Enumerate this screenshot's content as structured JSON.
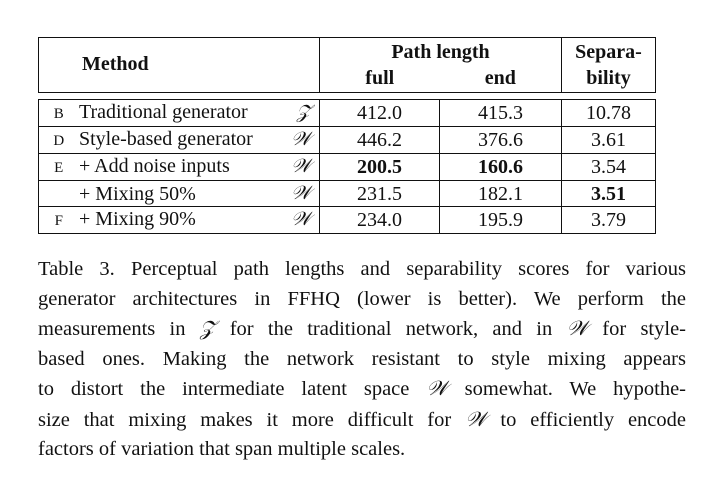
{
  "table": {
    "headers": {
      "method": "Method",
      "path_length": "Path length",
      "full": "full",
      "end": "end",
      "separability_1": "Separa-",
      "separability_2": "bility"
    },
    "rows": [
      {
        "letter": "B",
        "method": "Traditional generator",
        "space": "𝒵",
        "full": "412.0",
        "end": "415.3",
        "sep": "10.78"
      },
      {
        "letter": "D",
        "method": "Style-based generator",
        "space": "𝒲",
        "full": "446.2",
        "end": "376.6",
        "sep": "3.61"
      },
      {
        "letter": "E",
        "method": "+ Add noise inputs",
        "space": "𝒲",
        "full": "200.5",
        "end": "160.6",
        "sep": "3.54"
      },
      {
        "letter": "",
        "method": "+ Mixing 50%",
        "space": "𝒲",
        "full": "231.5",
        "end": "182.1",
        "sep": "3.51"
      },
      {
        "letter": "F",
        "method": "+ Mixing 90%",
        "space": "𝒲",
        "full": "234.0",
        "end": "195.9",
        "sep": "3.79"
      }
    ]
  },
  "caption": {
    "line1": "Table 3. Perceptual path lengths and separability scores for various",
    "line2": "generator architectures in FFHQ (lower is better). We perform the",
    "line3_a": "measurements in ",
    "line3_sym1": "𝒵",
    "line3_b": " for the traditional network, and in ",
    "line3_sym2": "𝒲",
    "line3_c": " for style-",
    "line4": "based ones. Making the network resistant to style mixing appears",
    "line5_a": "to distort the intermediate latent space ",
    "line5_sym": "𝒲",
    "line5_b": " somewhat. We hypothe-",
    "line6_a": "size that mixing makes it more difficult for ",
    "line6_sym": "𝒲",
    "line6_b": " to efficiently encode",
    "line7": "factors of variation that span multiple scales."
  }
}
